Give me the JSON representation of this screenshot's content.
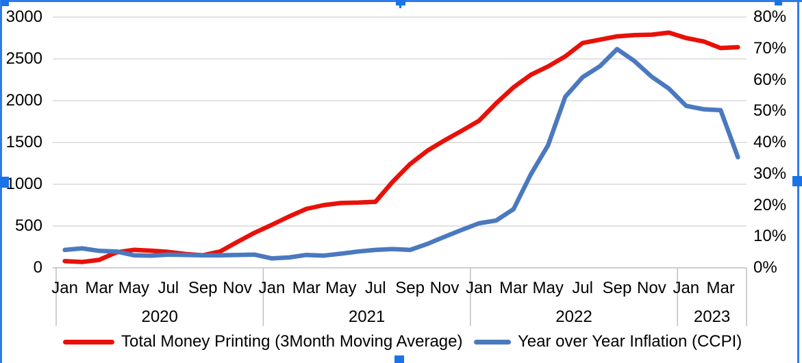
{
  "colors": {
    "money_printing_line": "#e81109",
    "inflation_line": "#4b79bf",
    "gridline": "#d9d9d9",
    "axis_line": "#bfbfbf",
    "selection": "#1a73e8",
    "selection_border": "#2e7bea",
    "text": "#000000"
  },
  "legend": {
    "items": [
      {
        "label": "Total Money Printing (3Month Moving Average)"
      },
      {
        "label": "Year over Year Inflation (CCPI)"
      }
    ]
  },
  "chart_data": {
    "type": "line",
    "title": "",
    "grid": "horizontal",
    "legend_position": "bottom",
    "categories": [
      "Jan 2020",
      "Feb 2020",
      "Mar 2020",
      "Apr 2020",
      "May 2020",
      "Jun 2020",
      "Jul 2020",
      "Aug 2020",
      "Sep 2020",
      "Oct 2020",
      "Nov 2020",
      "Dec 2020",
      "Jan 2021",
      "Feb 2021",
      "Mar 2021",
      "Apr 2021",
      "May 2021",
      "Jun 2021",
      "Jul 2021",
      "Aug 2021",
      "Sep 2021",
      "Oct 2021",
      "Nov 2021",
      "Dec 2021",
      "Jan 2022",
      "Feb 2022",
      "Mar 2022",
      "Apr 2022",
      "May 2022",
      "Jun 2022",
      "Jul 2022",
      "Aug 2022",
      "Sep 2022",
      "Oct 2022",
      "Nov 2022",
      "Dec 2022",
      "Jan 2023",
      "Feb 2023",
      "Mar 2023",
      "Apr 2023"
    ],
    "series": [
      {
        "name": "Total Money Printing (3Month Moving Average)",
        "data_name": "money-printing-line",
        "color": "#e81109",
        "axis": "left",
        "values": [
          80,
          70,
          95,
          185,
          215,
          205,
          190,
          165,
          150,
          195,
          310,
          420,
          515,
          615,
          705,
          750,
          775,
          780,
          790,
          1030,
          1240,
          1400,
          1525,
          1640,
          1760,
          1970,
          2160,
          2310,
          2410,
          2530,
          2690,
          2730,
          2770,
          2785,
          2790,
          2815,
          2750,
          2710,
          2630,
          2640
        ]
      },
      {
        "name": "Year over Year Inflation (CCPI)",
        "data_name": "inflation-line",
        "color": "#4b79bf",
        "axis": "right",
        "values": [
          5.7,
          6.2,
          5.4,
          5.2,
          4.0,
          3.9,
          4.2,
          4.1,
          4.0,
          4.0,
          4.1,
          4.2,
          3.0,
          3.3,
          4.1,
          3.9,
          4.5,
          5.2,
          5.7,
          6.0,
          5.7,
          7.6,
          9.9,
          12.1,
          14.2,
          15.1,
          18.7,
          29.8,
          39.1,
          54.6,
          60.8,
          64.3,
          69.8,
          66.0,
          61.0,
          57.2,
          51.7,
          50.6,
          50.3,
          35.3
        ]
      }
    ],
    "left_axis": {
      "min": 0,
      "max": 3000,
      "labels": [
        "0",
        "500",
        "1000",
        "1500",
        "2000",
        "2500",
        "3000"
      ],
      "values": [
        0,
        500,
        1000,
        1500,
        2000,
        2500,
        3000
      ]
    },
    "right_axis": {
      "min": 0,
      "max": 80,
      "labels": [
        "0%",
        "10%",
        "20%",
        "30%",
        "40%",
        "50%",
        "60%",
        "70%",
        "80%"
      ],
      "values": [
        0,
        10,
        20,
        30,
        40,
        50,
        60,
        70,
        80
      ]
    },
    "x_axis": {
      "years": [
        {
          "label": "2020",
          "first_month_index": 0,
          "month_labels": [
            "Jan",
            "Mar",
            "May",
            "Jul",
            "Sep",
            "Nov"
          ]
        },
        {
          "label": "2021",
          "first_month_index": 12,
          "month_labels": [
            "Jan",
            "Mar",
            "May",
            "Jul",
            "Sep",
            "Nov"
          ]
        },
        {
          "label": "2022",
          "first_month_index": 24,
          "month_labels": [
            "Jan",
            "Mar",
            "May",
            "Jul",
            "Sep",
            "Nov"
          ]
        },
        {
          "label": "2023",
          "first_month_index": 36,
          "month_labels": [
            "Jan",
            "Mar"
          ]
        }
      ]
    }
  }
}
